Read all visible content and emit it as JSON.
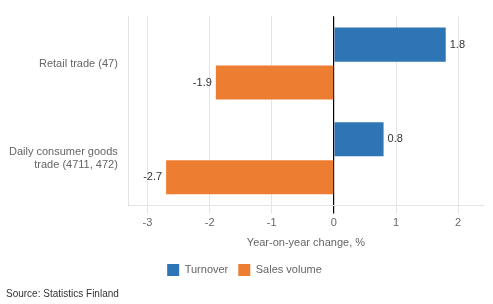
{
  "chart_data": {
    "type": "bar",
    "orientation": "horizontal",
    "categories": [
      "Retail trade (47)",
      "Daily consumer goods trade (4711, 472)"
    ],
    "series": [
      {
        "name": "Turnover",
        "color": "#2e75b6",
        "values": [
          1.8,
          0.8
        ]
      },
      {
        "name": "Sales volume",
        "color": "#ed7d31",
        "values": [
          -1.9,
          -2.7
        ]
      }
    ],
    "xlabel": "Year-on-year change, %",
    "xlim": [
      -3.3,
      2.4
    ],
    "xticks": [
      -3,
      -2,
      -1,
      0,
      1,
      2
    ],
    "grid": true,
    "legend": "bottom",
    "data_labels": true,
    "annotations": [
      "Source: Statistics Finland"
    ]
  }
}
